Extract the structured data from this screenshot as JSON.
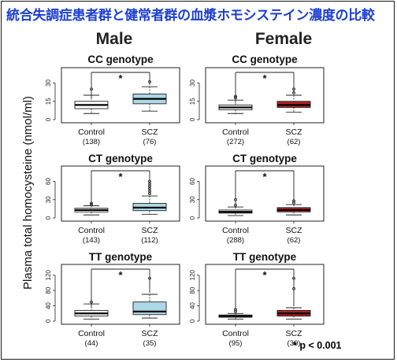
{
  "title": "統合失調症患者群と健常者群の血漿ホモシステイン濃度の比較",
  "footnote": "* p < 0.001",
  "y_axis_label": "Plasma total homocysteine (nmol/ml)",
  "significance_mark": "*",
  "colors": {
    "title": "#1d3fd1",
    "male_box": "#add8e6",
    "female_box": "#b22222",
    "control_box": "#ffffff"
  },
  "chart_data": [
    {
      "type": "boxplot",
      "column": "Male",
      "title": "CC genotype",
      "ylim": [
        0,
        40
      ],
      "yticks": [
        0,
        15,
        30
      ],
      "categories": [
        "Control",
        "SCZ"
      ],
      "counts": [
        "(138)",
        "(76)"
      ],
      "boxes": [
        {
          "min": 5,
          "q1": 9,
          "median": 12,
          "q3": 15,
          "max": 20,
          "outliers": [
            25
          ]
        },
        {
          "min": 7,
          "q1": 13,
          "median": 17,
          "q3": 21,
          "max": 27,
          "outliers": [
            31
          ]
        }
      ],
      "significance": "*"
    },
    {
      "type": "boxplot",
      "column": "Female",
      "title": "CC genotype",
      "ylim": [
        0,
        40
      ],
      "yticks": [
        0,
        15,
        30
      ],
      "categories": [
        "Control",
        "SCZ"
      ],
      "counts": [
        "(272)",
        "(62)"
      ],
      "boxes": [
        {
          "min": 5,
          "q1": 8,
          "median": 10,
          "q3": 12,
          "max": 16,
          "outliers": [
            18,
            19
          ]
        },
        {
          "min": 6,
          "q1": 10,
          "median": 12,
          "q3": 15,
          "max": 20,
          "outliers": [
            22,
            25
          ]
        }
      ],
      "significance": "*"
    },
    {
      "type": "boxplot",
      "column": "Male",
      "title": "CT genotype",
      "ylim": [
        0,
        80
      ],
      "yticks": [
        0,
        30,
        60
      ],
      "categories": [
        "Control",
        "SCZ"
      ],
      "counts": [
        "(143)",
        "(112)"
      ],
      "boxes": [
        {
          "min": 5,
          "q1": 10,
          "median": 13,
          "q3": 16,
          "max": 20,
          "outliers": [
            22,
            24
          ]
        },
        {
          "min": 6,
          "q1": 12,
          "median": 17,
          "q3": 24,
          "max": 36,
          "outliers": [
            40,
            44,
            48,
            52,
            56,
            60
          ]
        }
      ],
      "significance": "*"
    },
    {
      "type": "boxplot",
      "column": "Female",
      "title": "CT genotype",
      "ylim": [
        0,
        80
      ],
      "yticks": [
        0,
        30,
        60
      ],
      "categories": [
        "Control",
        "SCZ"
      ],
      "counts": [
        "(288)",
        "(62)"
      ],
      "boxes": [
        {
          "min": 4,
          "q1": 8,
          "median": 10,
          "q3": 13,
          "max": 18,
          "outliers": [
            21,
            30
          ]
        },
        {
          "min": 5,
          "q1": 10,
          "median": 13,
          "q3": 17,
          "max": 22,
          "outliers": [
            25,
            28
          ]
        }
      ],
      "significance": "*"
    },
    {
      "type": "boxplot",
      "column": "Male",
      "title": "TT genotype",
      "ylim": [
        0,
        140
      ],
      "yticks": [
        0,
        40,
        80,
        120
      ],
      "categories": [
        "Control",
        "SCZ"
      ],
      "counts": [
        "(44)",
        "(35)"
      ],
      "boxes": [
        {
          "min": 5,
          "q1": 13,
          "median": 20,
          "q3": 28,
          "max": 45,
          "outliers": [
            50
          ]
        },
        {
          "min": 8,
          "q1": 17,
          "median": 25,
          "q3": 50,
          "max": 70,
          "outliers": [
            112
          ]
        }
      ],
      "significance": "*"
    },
    {
      "type": "boxplot",
      "column": "Female",
      "title": "TT genotype",
      "ylim": [
        0,
        140
      ],
      "yticks": [
        0,
        40,
        80,
        120
      ],
      "categories": [
        "Control",
        "SCZ"
      ],
      "counts": [
        "(95)",
        "(30)"
      ],
      "boxes": [
        {
          "min": 5,
          "q1": 10,
          "median": 13,
          "q3": 16,
          "max": 20,
          "outliers": [
            25,
            30
          ]
        },
        {
          "min": 5,
          "q1": 13,
          "median": 20,
          "q3": 28,
          "max": 35,
          "outliers": [
            85,
            112
          ]
        }
      ],
      "significance": "*"
    }
  ]
}
